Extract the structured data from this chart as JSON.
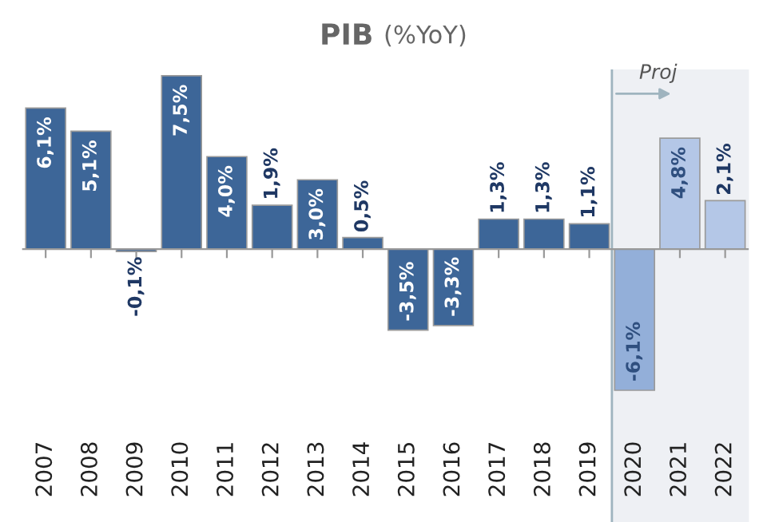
{
  "chart_data": {
    "type": "bar",
    "title": "PIB",
    "subtitle": "(%YoY)",
    "categories": [
      "2007",
      "2008",
      "2009",
      "2010",
      "2011",
      "2012",
      "2013",
      "2014",
      "2015",
      "2016",
      "2017",
      "2018",
      "2019",
      "2020",
      "2021",
      "2022"
    ],
    "values": [
      6.1,
      5.1,
      -0.1,
      7.5,
      4.0,
      1.9,
      3.0,
      0.5,
      -3.5,
      -3.3,
      1.3,
      1.3,
      1.1,
      -6.1,
      4.8,
      2.1
    ],
    "colors": [
      "#3d6698",
      "#3d6698",
      "#3d6698",
      "#3d6698",
      "#3d6698",
      "#3d6698",
      "#3d6698",
      "#3d6698",
      "#3d6698",
      "#3d6698",
      "#3d6698",
      "#3d6698",
      "#3d6698",
      "#93afd9",
      "#b4c7e7",
      "#b4c7e7"
    ],
    "value_labels": [
      "6,1%",
      "5,1%",
      "-0,1%",
      "7,5%",
      "4,0%",
      "1,9%",
      "3,0%",
      "0,5%",
      "-3,5%",
      "-3,3%",
      "1,3%",
      "1,3%",
      "1,1%",
      "-6,1%",
      "4,8%",
      "2,1%"
    ],
    "bands": [
      {
        "axis": "x",
        "from": "2020",
        "to": "2022",
        "label": "Proj",
        "color": "#eef0f4"
      }
    ],
    "grid": false,
    "legend": false
  }
}
